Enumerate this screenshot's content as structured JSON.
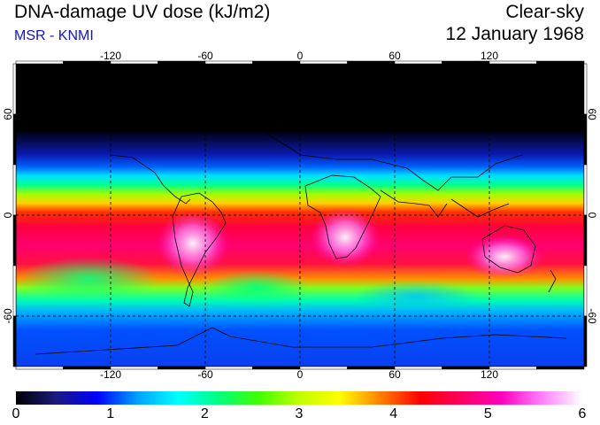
{
  "header": {
    "title": "DNA-damage UV dose (kJ/m2)",
    "subtitle": "MSR - KNMI",
    "sky_condition": "Clear-sky",
    "date": "12 January 1968"
  },
  "map": {
    "lon_ticks": [
      "-120",
      "-60",
      "0",
      "60",
      "120"
    ],
    "lat_ticks": [
      "60",
      "0",
      "-60"
    ],
    "lon_values": [
      -120,
      -60,
      0,
      60,
      120
    ],
    "lat_values": [
      60,
      0,
      -60
    ],
    "lon_range": [
      -180,
      180
    ],
    "lat_range": [
      90,
      -90
    ]
  },
  "colorbar": {
    "labels": [
      "0",
      "1",
      "2",
      "3",
      "4",
      "5",
      "6"
    ],
    "range": [
      0,
      6
    ],
    "stops": [
      "#000000",
      "#1a1a80",
      "#0000ff",
      "#00a0ff",
      "#00ffff",
      "#00ff80",
      "#40ff00",
      "#c0ff00",
      "#ffff00",
      "#ff8000",
      "#ff0000",
      "#ff0060",
      "#ff00c0",
      "#ff80ff",
      "#ffffff"
    ]
  }
}
